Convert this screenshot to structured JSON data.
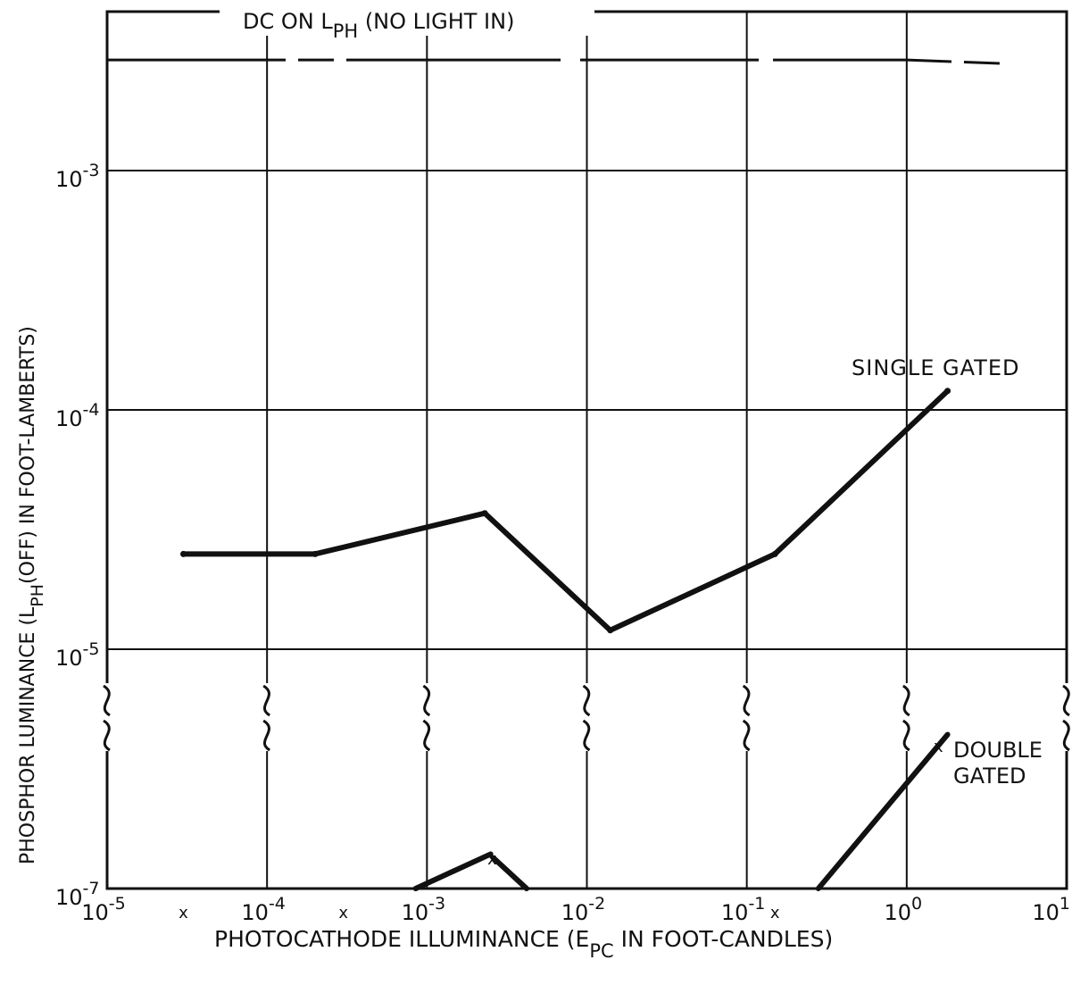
{
  "chart_data": {
    "type": "line",
    "title": "",
    "xlabel": {
      "pre": "PHOTOCATHODE ILLUMINANCE (",
      "symbol": "E",
      "sub": "PC",
      "post": " IN FOOT-CANDLES)"
    },
    "ylabel": {
      "pre": "PHOSPHOR LUMINANCE (L",
      "sub": "PH",
      "post": "(OFF) IN FOOT-LAMBERTS)"
    },
    "x_scale": "log",
    "y_scale": "log (broken axis)",
    "xlim": [
      1e-05,
      10
    ],
    "y_upper_range": [
      1e-05,
      0.005
    ],
    "y_lower_range": [
      1e-07,
      1e-06
    ],
    "grid": true,
    "x_ticks": [
      {
        "base": "10",
        "exp": "-5",
        "value": 1e-05
      },
      {
        "base": "10",
        "exp": "-4",
        "value": 0.0001
      },
      {
        "base": "10",
        "exp": "-3",
        "value": 0.001
      },
      {
        "base": "10",
        "exp": "-2",
        "value": 0.01
      },
      {
        "base": "10",
        "exp": "-1",
        "value": 0.1
      },
      {
        "base": "10",
        "exp": "0",
        "value": 1
      },
      {
        "base": "10",
        "exp": "1",
        "value": 10
      }
    ],
    "x_markers": [
      {
        "label": "x",
        "value": 3e-05
      },
      {
        "label": "x",
        "value": 0.0003
      },
      {
        "label": "x",
        "value": 0.15
      }
    ],
    "y_ticks": [
      {
        "base": "10",
        "exp": "-3",
        "value": 0.001
      },
      {
        "base": "10",
        "exp": "-4",
        "value": 0.0001
      },
      {
        "base": "10",
        "exp": "-5",
        "value": 1e-05
      },
      {
        "base": "10",
        "exp": "-7",
        "value": 1e-07
      }
    ],
    "annotations": {
      "dc": {
        "pre": "DC ON L",
        "sub": "PH",
        "post": " (NO LIGHT IN)"
      },
      "single": "SINGLE GATED",
      "double_line1": "DOUBLE",
      "double_line2": "GATED",
      "double_end_marker": "x",
      "double_peak_marker": "x"
    },
    "series": [
      {
        "name": "DC ON LPH (NO LIGHT IN)",
        "x": [
          1e-05,
          0.0001,
          0.001,
          0.01,
          0.1,
          1,
          4
        ],
        "y": [
          0.0029,
          0.0029,
          0.0029,
          0.0029,
          0.0029,
          0.0029,
          0.0028
        ]
      },
      {
        "name": "SINGLE GATED",
        "x": [
          3e-05,
          0.0002,
          0.0023,
          0.014,
          0.15,
          1.8
        ],
        "y": [
          2.5e-05,
          2.5e-05,
          3.7e-05,
          1.2e-05,
          2.5e-05,
          0.00012
        ]
      },
      {
        "name": "DOUBLE GATED",
        "segments": [
          {
            "x": [
              0.00085,
              0.0025
            ],
            "y": [
              1e-07,
              1.4e-07
            ]
          },
          {
            "x": [
              0.0026,
              0.0042
            ],
            "y": [
              1.35e-07,
              1e-07
            ]
          },
          {
            "x": [
              0.28,
              1.8
            ],
            "y": [
              1e-07,
              4.5e-07
            ]
          }
        ]
      }
    ]
  }
}
